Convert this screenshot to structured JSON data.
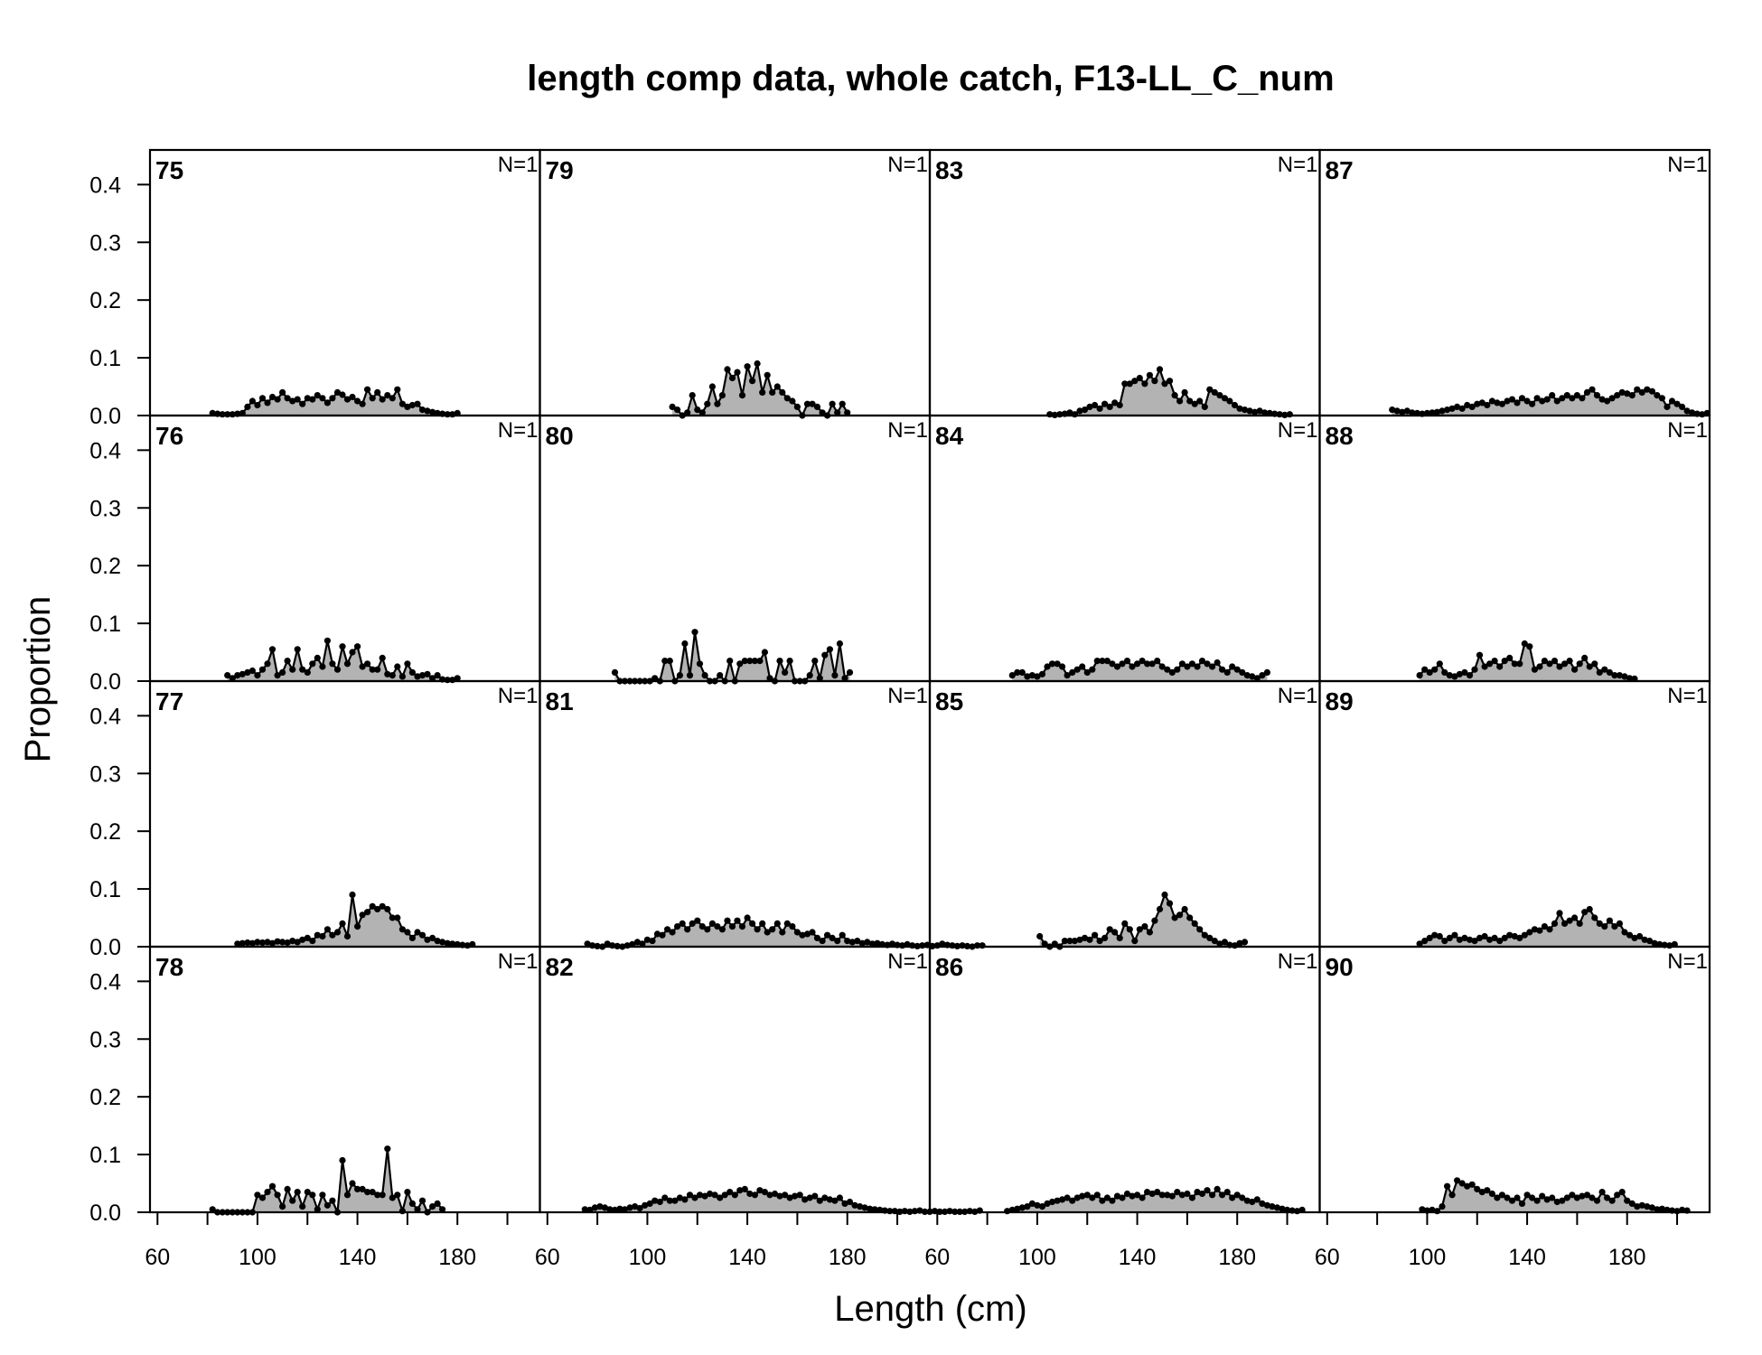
{
  "chart_data": {
    "type": "area",
    "title": "length comp data, whole catch, F13-LL_C_num",
    "xlabel": "Length (cm)",
    "ylabel": "Proportion",
    "xlim": [
      57,
      213
    ],
    "ylim": [
      0,
      0.46
    ],
    "x_ticks": [
      60,
      100,
      140,
      180
    ],
    "y_ticks": [
      0.0,
      0.1,
      0.2,
      0.3,
      0.4
    ],
    "grid": false,
    "layout": {
      "rows": 4,
      "cols": 4,
      "order": "column-major"
    },
    "fill_color": "#b3b3b3",
    "line_color": "#000000",
    "panels": [
      {
        "label": "75",
        "n_label": "N=1",
        "x_start": 82,
        "values": [
          0.004,
          0.003,
          0.002,
          0.002,
          0.002,
          0.003,
          0.004,
          0.015,
          0.025,
          0.018,
          0.03,
          0.022,
          0.032,
          0.028,
          0.04,
          0.03,
          0.025,
          0.028,
          0.02,
          0.03,
          0.028,
          0.035,
          0.03,
          0.022,
          0.03,
          0.04,
          0.036,
          0.028,
          0.032,
          0.025,
          0.02,
          0.045,
          0.03,
          0.04,
          0.028,
          0.035,
          0.03,
          0.045,
          0.02,
          0.015,
          0.018,
          0.02,
          0.01,
          0.008,
          0.006,
          0.004,
          0.003,
          0.002,
          0.002,
          0.004
        ]
      },
      {
        "label": "76",
        "n_label": "N=1",
        "x_start": 88,
        "values": [
          0.01,
          0.005,
          0.01,
          0.012,
          0.015,
          0.018,
          0.01,
          0.02,
          0.03,
          0.055,
          0.01,
          0.015,
          0.035,
          0.02,
          0.055,
          0.02,
          0.015,
          0.03,
          0.04,
          0.025,
          0.07,
          0.03,
          0.02,
          0.06,
          0.03,
          0.05,
          0.06,
          0.025,
          0.03,
          0.02,
          0.02,
          0.04,
          0.012,
          0.01,
          0.025,
          0.008,
          0.03,
          0.015,
          0.008,
          0.01,
          0.012,
          0.005,
          0.01,
          0.003,
          0.002,
          0.002,
          0.005
        ]
      },
      {
        "label": "77",
        "n_label": "N=1",
        "x_start": 92,
        "values": [
          0.005,
          0.006,
          0.007,
          0.006,
          0.008,
          0.007,
          0.008,
          0.006,
          0.009,
          0.008,
          0.007,
          0.01,
          0.008,
          0.012,
          0.015,
          0.01,
          0.02,
          0.018,
          0.03,
          0.02,
          0.025,
          0.04,
          0.018,
          0.09,
          0.035,
          0.055,
          0.06,
          0.07,
          0.065,
          0.07,
          0.065,
          0.05,
          0.05,
          0.03,
          0.025,
          0.015,
          0.025,
          0.02,
          0.012,
          0.015,
          0.01,
          0.008,
          0.006,
          0.005,
          0.004,
          0.003,
          0.002,
          0.004
        ]
      },
      {
        "label": "78",
        "n_label": "N=1",
        "x_start": 82,
        "values": [
          0.005,
          0.0,
          0.0,
          0.0,
          0.0,
          0.0,
          0.0,
          0.0,
          0.0,
          0.03,
          0.025,
          0.035,
          0.045,
          0.03,
          0.01,
          0.04,
          0.02,
          0.035,
          0.01,
          0.035,
          0.03,
          0.005,
          0.03,
          0.012,
          0.02,
          0.0,
          0.09,
          0.03,
          0.05,
          0.04,
          0.04,
          0.035,
          0.035,
          0.03,
          0.03,
          0.11,
          0.025,
          0.03,
          0.002,
          0.035,
          0.015,
          0.005,
          0.02,
          0.0,
          0.01,
          0.015,
          0.005
        ]
      },
      {
        "label": "79",
        "n_label": "N=1",
        "x_start": 110,
        "values": [
          0.015,
          0.01,
          0.0,
          0.005,
          0.035,
          0.01,
          0.005,
          0.02,
          0.05,
          0.02,
          0.035,
          0.08,
          0.065,
          0.075,
          0.035,
          0.085,
          0.06,
          0.09,
          0.04,
          0.07,
          0.04,
          0.05,
          0.04,
          0.03,
          0.025,
          0.015,
          0.0,
          0.02,
          0.02,
          0.015,
          0.005,
          0.0,
          0.02,
          0.005,
          0.02,
          0.005
        ]
      },
      {
        "label": "80",
        "n_label": "N=1",
        "x_start": 87,
        "values": [
          0.015,
          0.0,
          0.0,
          0.0,
          0.0,
          0.0,
          0.0,
          0.0,
          0.005,
          0.0,
          0.035,
          0.035,
          0.0,
          0.01,
          0.065,
          0.01,
          0.085,
          0.03,
          0.01,
          0.0,
          0.0,
          0.01,
          0.0,
          0.035,
          0.0,
          0.03,
          0.035,
          0.035,
          0.035,
          0.035,
          0.05,
          0.005,
          0.0,
          0.035,
          0.015,
          0.035,
          0.0,
          0.0,
          0.0,
          0.01,
          0.035,
          0.005,
          0.045,
          0.055,
          0.01,
          0.065,
          0.005,
          0.015
        ]
      },
      {
        "label": "81",
        "n_label": "N=1",
        "x_start": 76,
        "values": [
          0.005,
          0.002,
          0.001,
          0.0,
          0.005,
          0.002,
          0.001,
          0.0,
          0.002,
          0.004,
          0.008,
          0.005,
          0.012,
          0.01,
          0.022,
          0.02,
          0.03,
          0.025,
          0.035,
          0.04,
          0.03,
          0.04,
          0.045,
          0.035,
          0.03,
          0.04,
          0.035,
          0.03,
          0.045,
          0.035,
          0.045,
          0.035,
          0.05,
          0.04,
          0.03,
          0.04,
          0.025,
          0.03,
          0.04,
          0.025,
          0.04,
          0.035,
          0.025,
          0.02,
          0.022,
          0.025,
          0.015,
          0.01,
          0.02,
          0.015,
          0.01,
          0.02,
          0.01,
          0.008,
          0.01,
          0.006,
          0.008,
          0.005,
          0.006,
          0.004,
          0.003,
          0.005,
          0.003,
          0.002,
          0.004,
          0.002,
          0.001,
          0.002,
          0.003,
          0.001,
          0.002,
          0.005,
          0.003,
          0.002,
          0.001,
          0.002,
          0.001,
          0.0,
          0.002,
          0.002
        ]
      },
      {
        "label": "82",
        "n_label": "N=1",
        "x_start": 75,
        "values": [
          0.005,
          0.004,
          0.008,
          0.01,
          0.008,
          0.005,
          0.004,
          0.006,
          0.005,
          0.008,
          0.01,
          0.007,
          0.012,
          0.015,
          0.02,
          0.018,
          0.025,
          0.02,
          0.02,
          0.025,
          0.022,
          0.03,
          0.025,
          0.03,
          0.028,
          0.032,
          0.03,
          0.025,
          0.03,
          0.035,
          0.03,
          0.038,
          0.04,
          0.032,
          0.03,
          0.038,
          0.035,
          0.03,
          0.032,
          0.028,
          0.03,
          0.025,
          0.028,
          0.03,
          0.022,
          0.025,
          0.028,
          0.02,
          0.025,
          0.022,
          0.02,
          0.025,
          0.015,
          0.018,
          0.012,
          0.01,
          0.008,
          0.006,
          0.005,
          0.004,
          0.003,
          0.002,
          0.002,
          0.001,
          0.002,
          0.001,
          0.002,
          0.003,
          0.001,
          0.001,
          0.002,
          0.001,
          0.001,
          0.002,
          0.001,
          0.001,
          0.001,
          0.002,
          0.001,
          0.003
        ]
      },
      {
        "label": "83",
        "n_label": "N=1",
        "x_start": 105,
        "values": [
          0.002,
          0.001,
          0.002,
          0.003,
          0.005,
          0.002,
          0.008,
          0.01,
          0.015,
          0.018,
          0.012,
          0.02,
          0.015,
          0.022,
          0.018,
          0.055,
          0.055,
          0.06,
          0.065,
          0.055,
          0.07,
          0.06,
          0.08,
          0.055,
          0.06,
          0.035,
          0.025,
          0.04,
          0.025,
          0.02,
          0.025,
          0.015,
          0.045,
          0.04,
          0.035,
          0.03,
          0.025,
          0.018,
          0.012,
          0.01,
          0.008,
          0.006,
          0.008,
          0.005,
          0.004,
          0.003,
          0.002,
          0.001,
          0.002
        ]
      },
      {
        "label": "84",
        "n_label": "N=1",
        "x_start": 90,
        "values": [
          0.01,
          0.015,
          0.015,
          0.008,
          0.01,
          0.008,
          0.012,
          0.025,
          0.03,
          0.03,
          0.025,
          0.01,
          0.015,
          0.02,
          0.025,
          0.015,
          0.02,
          0.035,
          0.035,
          0.035,
          0.03,
          0.025,
          0.03,
          0.035,
          0.025,
          0.03,
          0.035,
          0.03,
          0.03,
          0.035,
          0.025,
          0.02,
          0.015,
          0.02,
          0.03,
          0.025,
          0.03,
          0.025,
          0.035,
          0.03,
          0.025,
          0.032,
          0.02,
          0.015,
          0.025,
          0.02,
          0.015,
          0.01,
          0.008,
          0.005,
          0.01,
          0.015
        ]
      },
      {
        "label": "85",
        "n_label": "N=1",
        "x_start": 101,
        "values": [
          0.018,
          0.005,
          0.0,
          0.005,
          0.0,
          0.01,
          0.01,
          0.01,
          0.012,
          0.015,
          0.012,
          0.02,
          0.01,
          0.015,
          0.03,
          0.025,
          0.015,
          0.04,
          0.03,
          0.01,
          0.03,
          0.035,
          0.025,
          0.045,
          0.065,
          0.09,
          0.075,
          0.05,
          0.055,
          0.065,
          0.05,
          0.04,
          0.03,
          0.02,
          0.015,
          0.01,
          0.005,
          0.008,
          0.003,
          0.002,
          0.006,
          0.008
        ]
      },
      {
        "label": "86",
        "n_label": "N=1",
        "x_start": 88,
        "values": [
          0.002,
          0.004,
          0.006,
          0.008,
          0.01,
          0.015,
          0.012,
          0.01,
          0.015,
          0.018,
          0.02,
          0.022,
          0.025,
          0.02,
          0.025,
          0.028,
          0.03,
          0.025,
          0.03,
          0.02,
          0.025,
          0.02,
          0.028,
          0.025,
          0.032,
          0.028,
          0.03,
          0.025,
          0.035,
          0.032,
          0.035,
          0.03,
          0.03,
          0.028,
          0.035,
          0.03,
          0.032,
          0.025,
          0.035,
          0.032,
          0.038,
          0.03,
          0.04,
          0.03,
          0.035,
          0.025,
          0.03,
          0.025,
          0.02,
          0.018,
          0.022,
          0.015,
          0.012,
          0.01,
          0.008,
          0.006,
          0.004,
          0.003,
          0.002,
          0.004
        ]
      },
      {
        "label": "87",
        "n_label": "N=1",
        "x_start": 86,
        "values": [
          0.01,
          0.008,
          0.006,
          0.008,
          0.005,
          0.004,
          0.003,
          0.004,
          0.005,
          0.006,
          0.008,
          0.01,
          0.012,
          0.015,
          0.012,
          0.018,
          0.015,
          0.02,
          0.022,
          0.018,
          0.025,
          0.022,
          0.02,
          0.025,
          0.028,
          0.022,
          0.03,
          0.025,
          0.02,
          0.03,
          0.025,
          0.028,
          0.035,
          0.025,
          0.03,
          0.035,
          0.03,
          0.035,
          0.03,
          0.04,
          0.045,
          0.035,
          0.028,
          0.025,
          0.03,
          0.035,
          0.04,
          0.038,
          0.035,
          0.045,
          0.04,
          0.045,
          0.042,
          0.035,
          0.03,
          0.015,
          0.025,
          0.02,
          0.015,
          0.008,
          0.005,
          0.003,
          0.002,
          0.004
        ]
      },
      {
        "label": "88",
        "n_label": "N=1",
        "x_start": 97,
        "values": [
          0.01,
          0.02,
          0.015,
          0.02,
          0.03,
          0.015,
          0.01,
          0.008,
          0.012,
          0.015,
          0.01,
          0.02,
          0.045,
          0.025,
          0.03,
          0.035,
          0.025,
          0.035,
          0.04,
          0.03,
          0.03,
          0.065,
          0.06,
          0.02,
          0.025,
          0.035,
          0.03,
          0.035,
          0.025,
          0.03,
          0.035,
          0.02,
          0.03,
          0.04,
          0.025,
          0.03,
          0.015,
          0.02,
          0.015,
          0.01,
          0.01,
          0.008,
          0.005,
          0.004
        ]
      },
      {
        "label": "89",
        "n_label": "N=1",
        "x_start": 97,
        "values": [
          0.005,
          0.01,
          0.015,
          0.02,
          0.018,
          0.01,
          0.015,
          0.02,
          0.012,
          0.015,
          0.012,
          0.01,
          0.015,
          0.018,
          0.012,
          0.015,
          0.01,
          0.015,
          0.02,
          0.018,
          0.015,
          0.02,
          0.025,
          0.03,
          0.028,
          0.035,
          0.03,
          0.04,
          0.058,
          0.04,
          0.045,
          0.05,
          0.04,
          0.06,
          0.065,
          0.05,
          0.04,
          0.035,
          0.045,
          0.035,
          0.04,
          0.025,
          0.02,
          0.015,
          0.018,
          0.012,
          0.01,
          0.006,
          0.004,
          0.003,
          0.002,
          0.004
        ]
      },
      {
        "label": "90",
        "n_label": "N=1",
        "x_start": 98,
        "values": [
          0.005,
          0.003,
          0.004,
          0.002,
          0.01,
          0.045,
          0.03,
          0.055,
          0.05,
          0.045,
          0.048,
          0.04,
          0.035,
          0.038,
          0.032,
          0.025,
          0.03,
          0.025,
          0.02,
          0.025,
          0.015,
          0.03,
          0.025,
          0.02,
          0.028,
          0.022,
          0.025,
          0.018,
          0.02,
          0.025,
          0.03,
          0.025,
          0.028,
          0.03,
          0.025,
          0.02,
          0.035,
          0.025,
          0.02,
          0.03,
          0.035,
          0.02,
          0.015,
          0.01,
          0.012,
          0.01,
          0.008,
          0.005,
          0.006,
          0.004,
          0.003,
          0.002,
          0.004,
          0.003
        ]
      }
    ]
  }
}
